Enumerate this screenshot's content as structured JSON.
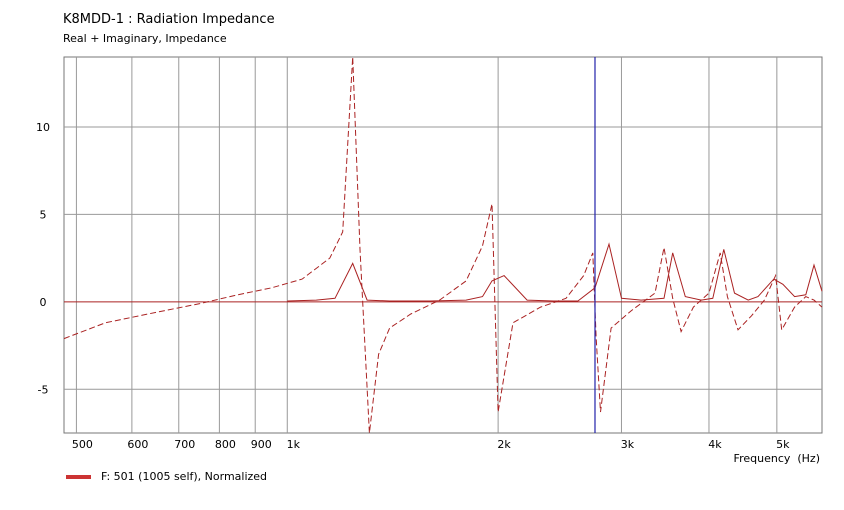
{
  "chart_data": {
    "type": "line",
    "title": "K8MDD-1 : Radiation Impedance",
    "subtitle": "Real + Imaginary, Impedance",
    "xlabel": "Frequency  (Hz)",
    "ylabel": "",
    "x_scale": "log",
    "xlim": [
      480,
      5800
    ],
    "ylim": [
      -7.5,
      14
    ],
    "grid": true,
    "x_ticks": [
      {
        "value": 500,
        "label": "500"
      },
      {
        "value": 600,
        "label": "600"
      },
      {
        "value": 700,
        "label": "700"
      },
      {
        "value": 800,
        "label": "800"
      },
      {
        "value": 900,
        "label": "900"
      },
      {
        "value": 1000,
        "label": "1k"
      },
      {
        "value": 2000,
        "label": "2k"
      },
      {
        "value": 3000,
        "label": "3k"
      },
      {
        "value": 4000,
        "label": "4k"
      },
      {
        "value": 5000,
        "label": "5k"
      }
    ],
    "x_gridlines": [
      500,
      600,
      700,
      800,
      900,
      1000,
      2000,
      3000,
      4000,
      5000
    ],
    "y_ticks": [
      {
        "value": 10,
        "label": "10"
      },
      {
        "value": 5,
        "label": "5"
      },
      {
        "value": 0,
        "label": "0"
      },
      {
        "value": -5,
        "label": "-5"
      }
    ],
    "cursor_x": 2750,
    "legend": {
      "position": "bottom-left",
      "label": "F: 501 (1005 self), Normalized"
    },
    "colors": {
      "series": "#aa2222",
      "cursor": "#2222aa",
      "grid": "#999999",
      "legend_swatch": "#cc3333"
    },
    "series": [
      {
        "name": "Real",
        "style": "solid",
        "x": [
          1000,
          1100,
          1170,
          1240,
          1300,
          1400,
          1600,
          1800,
          1900,
          1960,
          2040,
          2200,
          2400,
          2600,
          2750,
          2880,
          3000,
          3200,
          3450,
          3550,
          3700,
          3900,
          4050,
          4200,
          4350,
          4550,
          4700,
          4950,
          5100,
          5300,
          5500,
          5650,
          5800
        ],
        "y": [
          0.05,
          0.1,
          0.2,
          2.2,
          0.1,
          0.05,
          0.05,
          0.1,
          0.3,
          1.2,
          1.5,
          0.1,
          0.05,
          0.05,
          0.8,
          3.3,
          0.2,
          0.1,
          0.2,
          2.8,
          0.3,
          0.1,
          0.2,
          3.0,
          0.5,
          0.1,
          0.3,
          1.3,
          1.0,
          0.3,
          0.4,
          2.1,
          0.6
        ]
      },
      {
        "name": "Imaginary",
        "style": "dashed",
        "x": [
          480,
          550,
          650,
          750,
          850,
          950,
          1050,
          1150,
          1200,
          1240,
          1270,
          1310,
          1350,
          1400,
          1500,
          1650,
          1800,
          1900,
          1960,
          2000,
          2100,
          2300,
          2500,
          2650,
          2730,
          2760,
          2800,
          2900,
          3100,
          3350,
          3450,
          3550,
          3650,
          3800,
          4000,
          4150,
          4250,
          4400,
          4600,
          4800,
          4980,
          5080,
          5300,
          5500,
          5650,
          5800
        ],
        "y": [
          -2.1,
          -1.2,
          -0.6,
          -0.1,
          0.4,
          0.8,
          1.3,
          2.5,
          4.0,
          14.0,
          3.0,
          -7.5,
          -3.0,
          -1.5,
          -0.7,
          0.1,
          1.2,
          3.2,
          5.6,
          -6.3,
          -1.2,
          -0.3,
          0.2,
          1.5,
          2.8,
          -2.0,
          -6.3,
          -1.5,
          -0.5,
          0.5,
          3.1,
          0.2,
          -1.7,
          -0.3,
          0.5,
          2.8,
          0.3,
          -1.6,
          -0.8,
          0.1,
          1.5,
          -1.6,
          -0.3,
          0.3,
          0.1,
          -0.3
        ]
      }
    ]
  }
}
